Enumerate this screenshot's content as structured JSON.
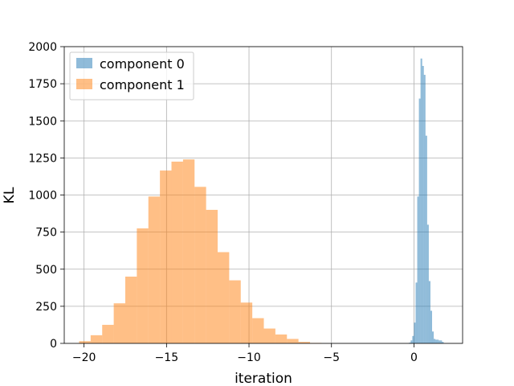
{
  "chart_data": {
    "type": "bar",
    "title": "",
    "xlabel": "iteration",
    "ylabel": "KL",
    "xlim": [
      -21.2,
      2.95
    ],
    "ylim": [
      0,
      2000
    ],
    "grid": true,
    "legend_position": "top-left",
    "x_ticks": [
      -20,
      -15,
      -10,
      -5,
      0
    ],
    "x_tick_labels": [
      "−20",
      "−15",
      "−10",
      "−5",
      "0"
    ],
    "y_ticks": [
      0,
      250,
      500,
      750,
      1000,
      1250,
      1500,
      1750,
      2000
    ],
    "y_tick_labels": [
      "0",
      "250",
      "500",
      "750",
      "1000",
      "1250",
      "1500",
      "1750",
      "2000"
    ],
    "series": [
      {
        "name": "component 0",
        "color": "#1f77b4",
        "opacity": 0.5,
        "bins": [
          [
            -0.3,
            -0.2,
            5
          ],
          [
            -0.2,
            -0.1,
            20
          ],
          [
            -0.1,
            0.0,
            50
          ],
          [
            0.0,
            0.1,
            140
          ],
          [
            0.1,
            0.2,
            410
          ],
          [
            0.2,
            0.3,
            990
          ],
          [
            0.3,
            0.4,
            1650
          ],
          [
            0.4,
            0.5,
            1920
          ],
          [
            0.5,
            0.6,
            1870
          ],
          [
            0.6,
            0.7,
            1810
          ],
          [
            0.7,
            0.8,
            1400
          ],
          [
            0.8,
            0.9,
            800
          ],
          [
            0.9,
            1.0,
            420
          ],
          [
            1.0,
            1.1,
            220
          ],
          [
            1.1,
            1.2,
            80
          ],
          [
            1.2,
            1.3,
            30
          ],
          [
            1.3,
            1.4,
            25
          ],
          [
            1.4,
            1.5,
            25
          ],
          [
            1.5,
            1.6,
            20
          ],
          [
            1.6,
            1.7,
            20
          ],
          [
            1.7,
            1.8,
            10
          ]
        ]
      },
      {
        "name": "component 1",
        "color": "#ff7f0e",
        "opacity": 0.5,
        "bins": [
          [
            -20.3,
            -19.6,
            15
          ],
          [
            -19.6,
            -18.9,
            55
          ],
          [
            -18.9,
            -18.2,
            125
          ],
          [
            -18.2,
            -17.5,
            270
          ],
          [
            -17.5,
            -16.8,
            450
          ],
          [
            -16.8,
            -16.1,
            775
          ],
          [
            -16.1,
            -15.4,
            990
          ],
          [
            -15.4,
            -14.7,
            1165
          ],
          [
            -14.7,
            -14.0,
            1225
          ],
          [
            -14.0,
            -13.3,
            1240
          ],
          [
            -13.3,
            -12.6,
            1055
          ],
          [
            -12.6,
            -11.9,
            900
          ],
          [
            -11.9,
            -11.2,
            615
          ],
          [
            -11.2,
            -10.5,
            425
          ],
          [
            -10.5,
            -9.8,
            275
          ],
          [
            -9.8,
            -9.1,
            170
          ],
          [
            -9.1,
            -8.4,
            100
          ],
          [
            -8.4,
            -7.7,
            60
          ],
          [
            -7.7,
            -7.0,
            30
          ],
          [
            -7.0,
            -6.3,
            10
          ],
          [
            -6.3,
            -5.6,
            3
          ]
        ]
      }
    ]
  }
}
